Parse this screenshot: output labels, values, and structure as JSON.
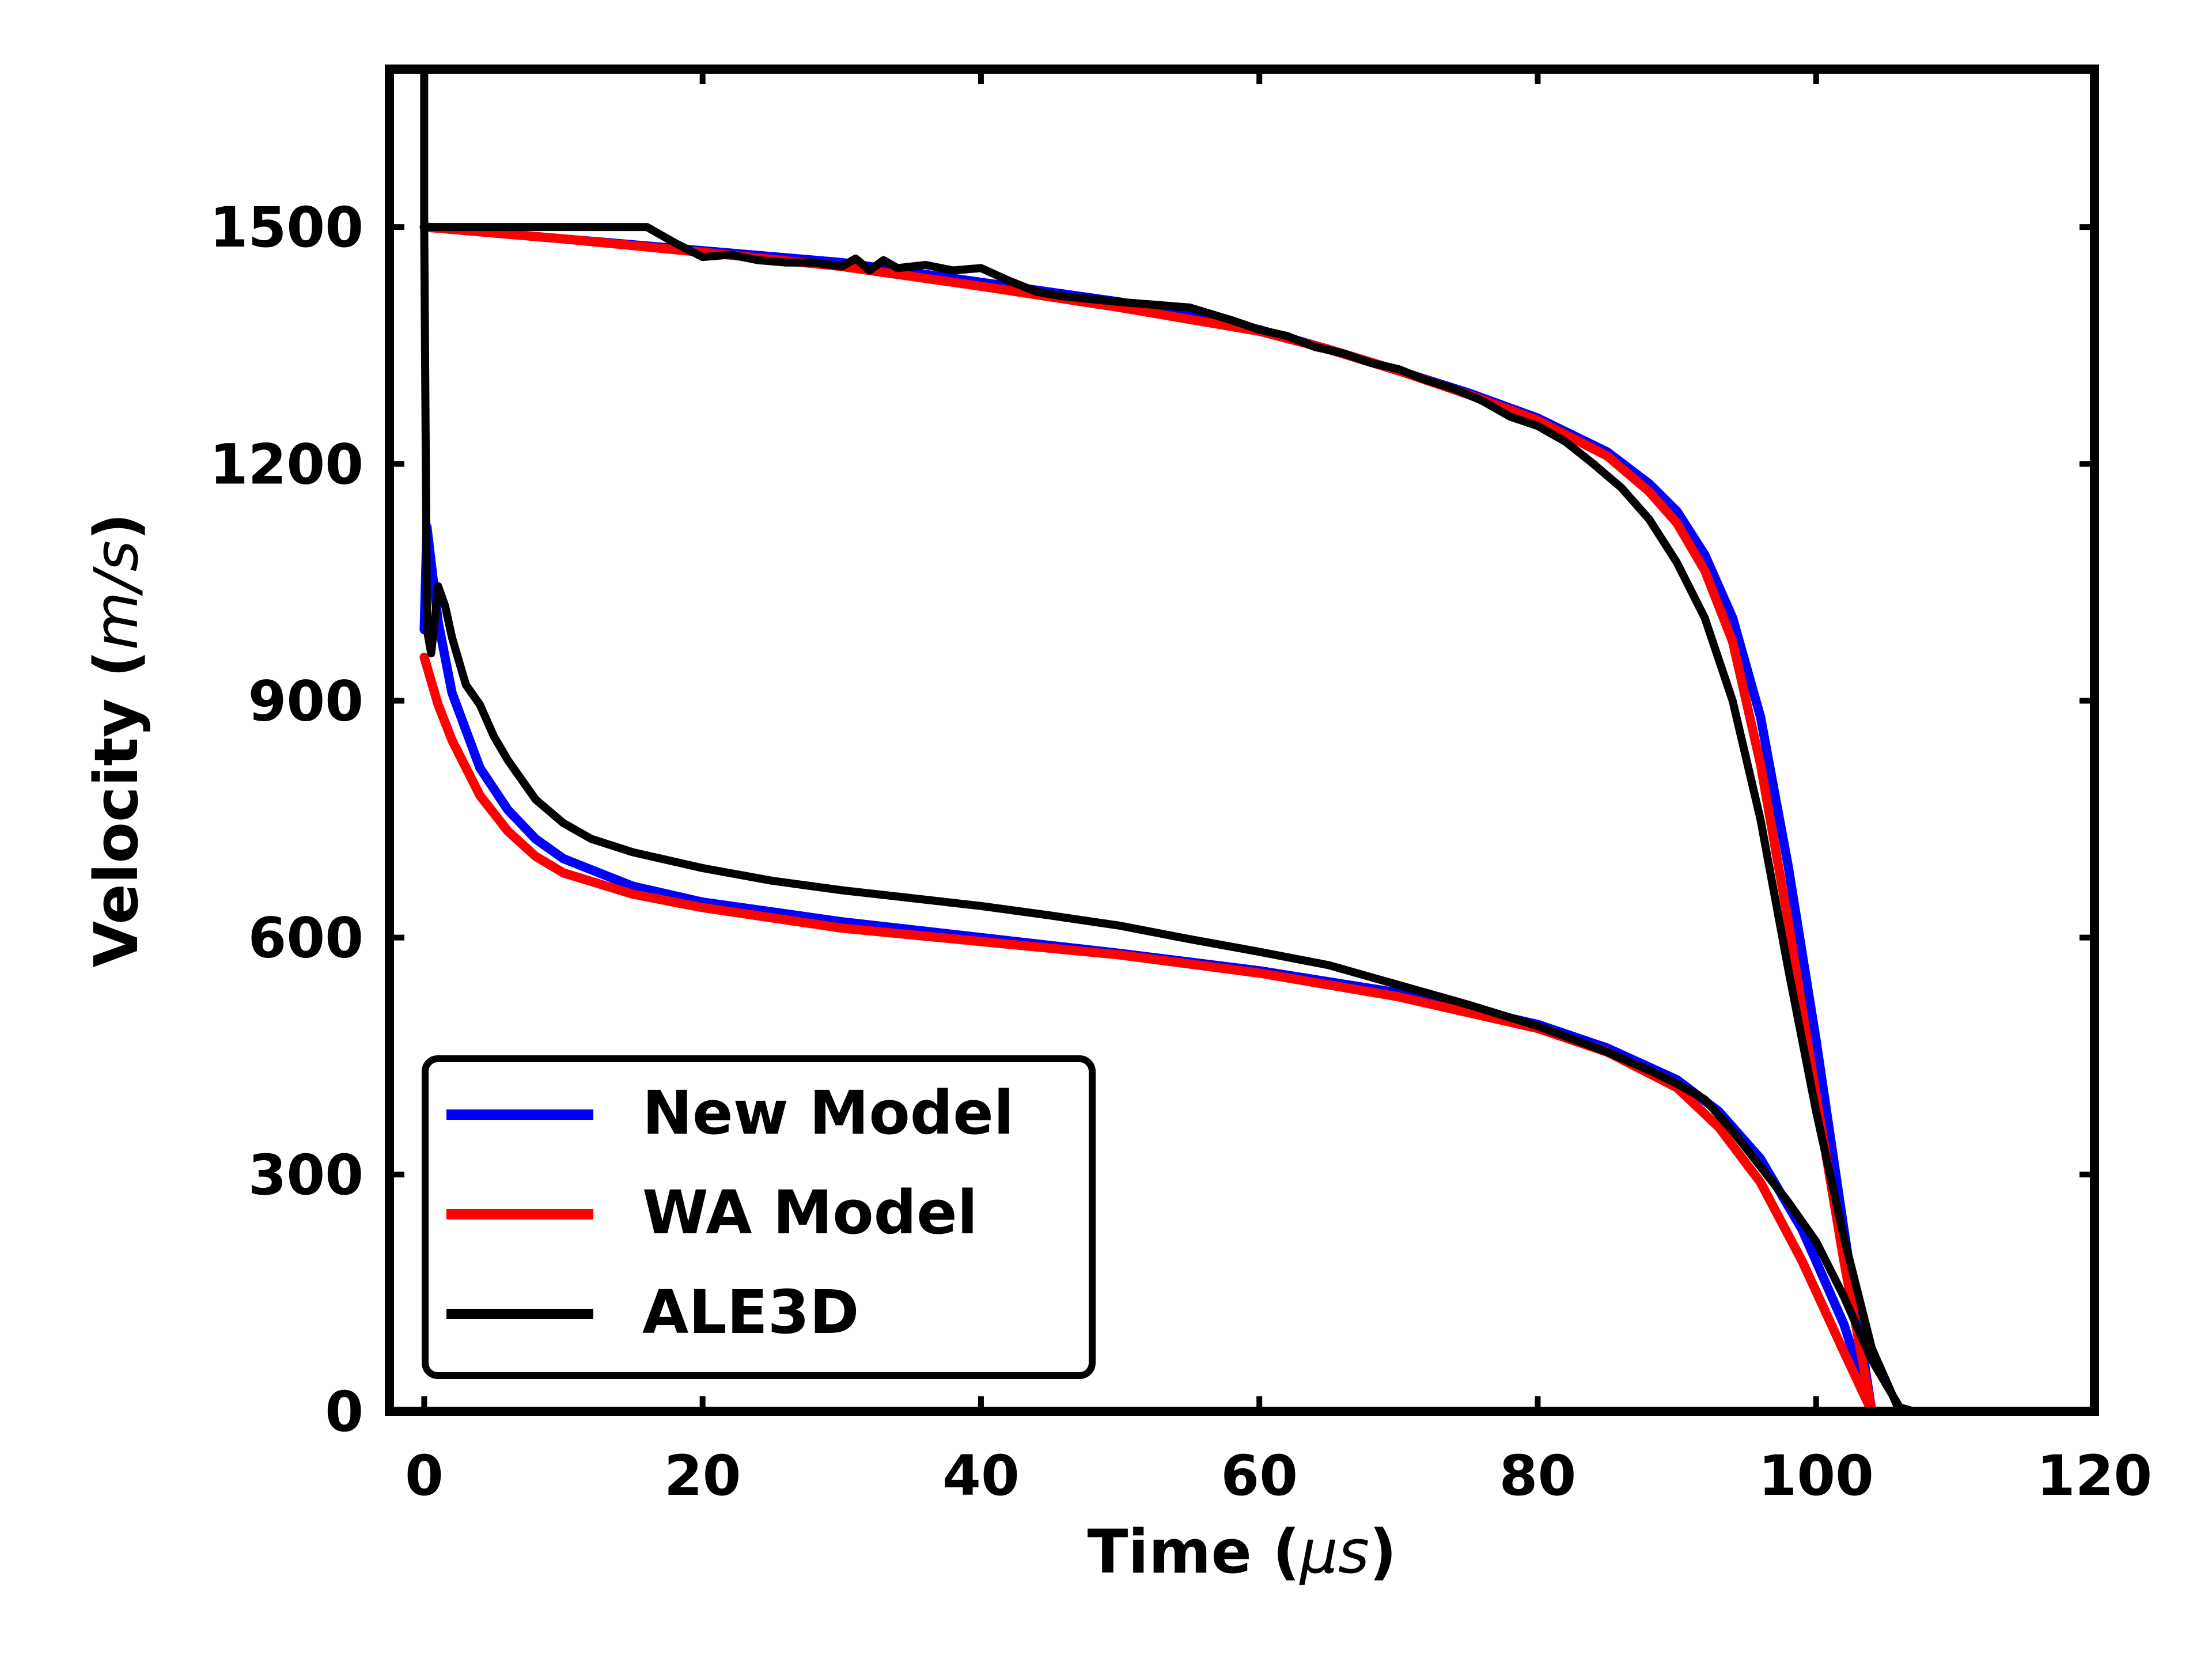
{
  "chart_data": {
    "type": "line",
    "title": "",
    "xlabel_main": "Time (",
    "xlabel_unit": "μs",
    "xlabel_close": ")",
    "ylabel_main": "Velocity (",
    "ylabel_unit": "m/s",
    "ylabel_close": ")",
    "xlim": [
      -2.5,
      120
    ],
    "ylim": [
      0,
      1700
    ],
    "xticks": [
      0,
      20,
      40,
      60,
      80,
      100,
      120
    ],
    "yticks": [
      0,
      300,
      600,
      900,
      1200,
      1500
    ],
    "xtick_labels": [
      "0",
      "20",
      "40",
      "60",
      "80",
      "100",
      "120"
    ],
    "ytick_labels": [
      "0",
      "300",
      "600",
      "900",
      "1200",
      "1500"
    ],
    "grid": false,
    "legend_position": "lower-left",
    "series": [
      {
        "name": "New Model",
        "color": "#0000ff",
        "curve": "upper",
        "x": [
          0,
          10,
          20,
          30,
          40,
          50,
          60,
          65,
          70,
          75,
          80,
          85,
          88,
          90,
          92,
          94,
          96,
          98,
          100,
          102,
          104
        ],
        "y": [
          1500,
          1485,
          1470,
          1455,
          1430,
          1405,
          1370,
          1345,
          1318,
          1290,
          1258,
          1215,
          1175,
          1140,
          1085,
          1005,
          880,
          690,
          470,
          230,
          0
        ]
      },
      {
        "name": "New Model",
        "color": "#0000ff",
        "curve": "lower",
        "x": [
          0,
          0.2,
          1,
          2,
          4,
          6,
          8,
          10,
          15,
          20,
          30,
          40,
          50,
          60,
          70,
          80,
          85,
          90,
          93,
          96,
          99,
          102,
          104
        ],
        "y": [
          990,
          1120,
          1000,
          910,
          815,
          762,
          725,
          700,
          665,
          645,
          620,
          600,
          580,
          558,
          530,
          490,
          460,
          420,
          380,
          320,
          230,
          110,
          0
        ]
      },
      {
        "name": "WA Model",
        "color": "#ff0000",
        "curve": "upper",
        "x": [
          0,
          10,
          20,
          30,
          40,
          50,
          60,
          65,
          70,
          75,
          80,
          85,
          88,
          90,
          92,
          94,
          96,
          98,
          100,
          102,
          104
        ],
        "y": [
          1500,
          1485,
          1468,
          1450,
          1425,
          1398,
          1368,
          1345,
          1318,
          1288,
          1255,
          1210,
          1165,
          1125,
          1065,
          975,
          820,
          620,
          400,
          190,
          0
        ]
      },
      {
        "name": "WA Model",
        "color": "#ff0000",
        "curve": "lower",
        "x": [
          0,
          1,
          2,
          4,
          6,
          8,
          10,
          15,
          20,
          30,
          40,
          50,
          60,
          70,
          80,
          85,
          90,
          93,
          96,
          99,
          102,
          104
        ],
        "y": [
          955,
          895,
          850,
          780,
          735,
          703,
          682,
          655,
          638,
          612,
          595,
          578,
          555,
          525,
          485,
          455,
          410,
          360,
          290,
          190,
          75,
          0
        ]
      },
      {
        "name": "ALE3D",
        "color": "#000000",
        "curve": "upper",
        "x": [
          0,
          0,
          10,
          16,
          18,
          20,
          22,
          24,
          26,
          28,
          30,
          31,
          32,
          33,
          34,
          36,
          38,
          40,
          42,
          44,
          46,
          50,
          55,
          58,
          60,
          62,
          64,
          66,
          68,
          70,
          72,
          74,
          76,
          78,
          80,
          82,
          84,
          86,
          88,
          90,
          92,
          94,
          96,
          98,
          100,
          102,
          104,
          106
        ],
        "y": [
          1700,
          1500,
          1500,
          1500,
          1480,
          1462,
          1465,
          1458,
          1455,
          1455,
          1450,
          1460,
          1445,
          1458,
          1448,
          1452,
          1445,
          1448,
          1432,
          1418,
          1412,
          1405,
          1398,
          1382,
          1370,
          1362,
          1348,
          1340,
          1328,
          1320,
          1306,
          1295,
          1280,
          1260,
          1248,
          1228,
          1200,
          1170,
          1130,
          1075,
          1005,
          900,
          750,
          560,
          380,
          220,
          80,
          0
        ]
      },
      {
        "name": "ALE3D",
        "color": "#000000",
        "curve": "lower",
        "x": [
          0,
          0.2,
          0.5,
          0.8,
          1.0,
          1.5,
          2,
          3,
          4,
          5,
          6,
          8,
          10,
          12,
          15,
          20,
          25,
          30,
          35,
          40,
          45,
          50,
          55,
          60,
          65,
          70,
          75,
          80,
          85,
          88,
          90,
          92,
          94,
          96,
          98,
          100,
          102,
          104,
          106,
          107
        ],
        "y": [
          1500,
          990,
          960,
          1010,
          1045,
          1020,
          980,
          920,
          895,
          855,
          825,
          775,
          745,
          725,
          708,
          688,
          672,
          660,
          650,
          640,
          628,
          615,
          598,
          582,
          565,
          540,
          515,
          488,
          455,
          432,
          415,
          395,
          355,
          310,
          265,
          215,
          145,
          65,
          5,
          0
        ]
      }
    ],
    "legend": [
      {
        "label": "New Model",
        "color": "#0000ff"
      },
      {
        "label": "WA Model",
        "color": "#ff0000"
      },
      {
        "label": "ALE3D",
        "color": "#000000"
      }
    ]
  }
}
